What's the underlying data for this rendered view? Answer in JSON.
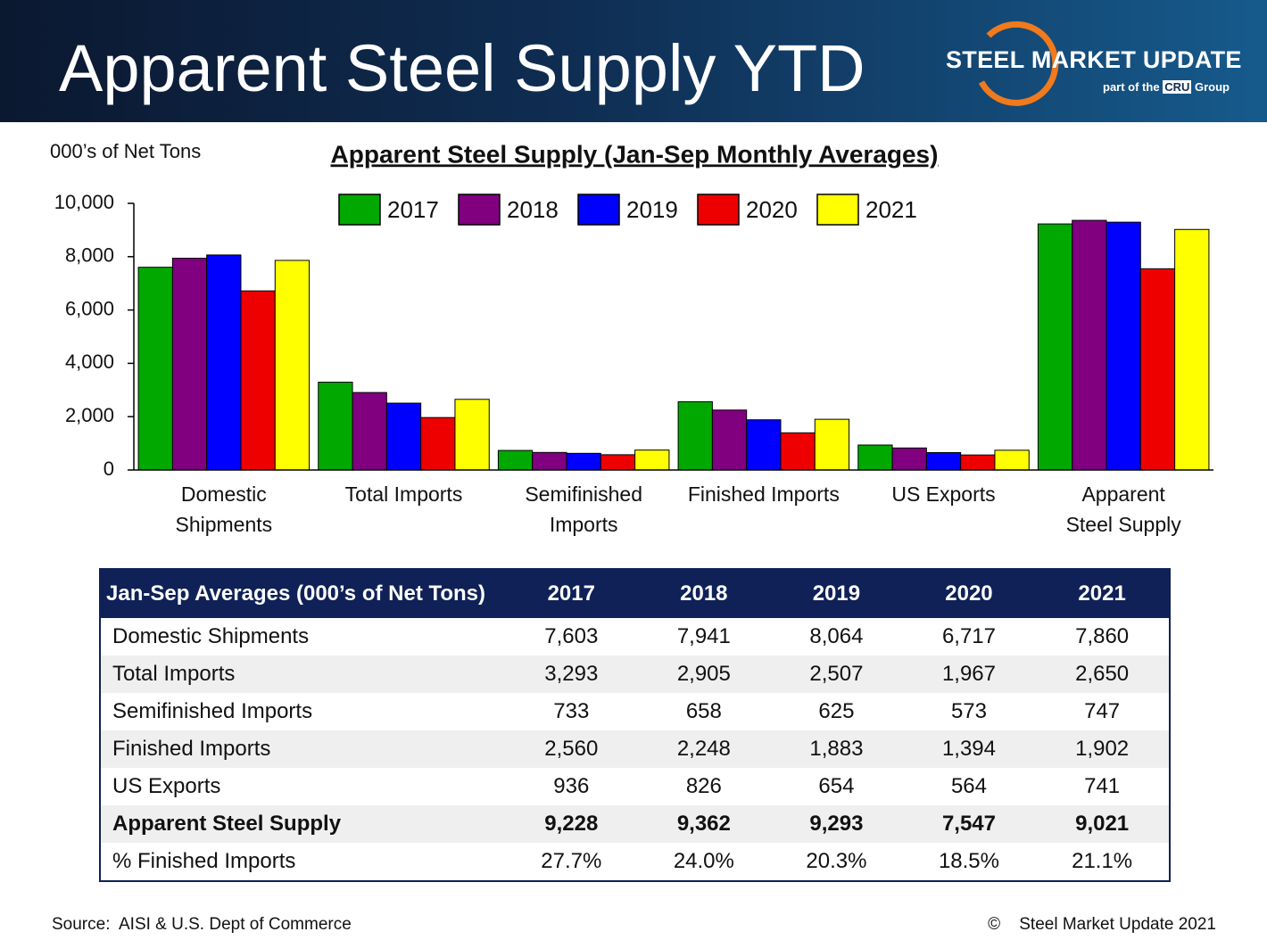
{
  "header": {
    "title": "Apparent Steel Supply YTD",
    "logo_name": "STEEL MARKET UPDATE",
    "logo_part": "part of the",
    "logo_cru": "CRU",
    "logo_group": "Group"
  },
  "chart_data": {
    "type": "bar",
    "title": "Apparent Steel Supply (Jan-Sep Monthly Averages)",
    "y_label": "000’s of Net Tons",
    "categories": [
      "Domestic\nShipments",
      "Total Imports",
      "Semifinished\nImports",
      "Finished Imports",
      "US Exports",
      "Apparent\nSteel Supply"
    ],
    "series": [
      {
        "name": "2017",
        "color": "#00a800",
        "values": [
          7603,
          3293,
          733,
          2560,
          936,
          9228
        ]
      },
      {
        "name": "2018",
        "color": "#800080",
        "values": [
          7941,
          2905,
          658,
          2248,
          826,
          9362
        ]
      },
      {
        "name": "2019",
        "color": "#0000ff",
        "values": [
          8064,
          2507,
          625,
          1883,
          654,
          9293
        ]
      },
      {
        "name": "2020",
        "color": "#ee0000",
        "values": [
          6717,
          1967,
          573,
          1394,
          564,
          7547
        ]
      },
      {
        "name": "2021",
        "color": "#ffff00",
        "values": [
          7860,
          2650,
          747,
          1902,
          741,
          9021
        ]
      }
    ],
    "ylim": [
      0,
      10000
    ],
    "yticks": [
      0,
      {
        "value": 2000,
        "label": "2,000"
      },
      {
        "value": 4000,
        "label": "4,000"
      },
      {
        "value": 6000,
        "label": "6,000"
      },
      {
        "value": 8000,
        "label": "8,000"
      },
      {
        "value": 10000,
        "label": "10,000"
      }
    ],
    "grid": false,
    "legend": "top"
  },
  "table": {
    "header": [
      "Jan-Sep Averages (000’s of Net Tons)",
      "2017",
      "2018",
      "2019",
      "2020",
      "2021"
    ],
    "rows": [
      [
        "Domestic Shipments",
        "7,603",
        "7,941",
        "8,064",
        "6,717",
        "7,860"
      ],
      [
        "Total Imports",
        "3,293",
        "2,905",
        "2,507",
        "1,967",
        "2,650"
      ],
      [
        "Semifinished Imports",
        "733",
        "658",
        "625",
        "573",
        "747"
      ],
      [
        "Finished Imports",
        "2,560",
        "2,248",
        "1,883",
        "1,394",
        "1,902"
      ],
      [
        "US Exports",
        "936",
        "826",
        "654",
        "564",
        "741"
      ],
      [
        "Apparent Steel Supply",
        "9,228",
        "9,362",
        "9,293",
        "7,547",
        "9,021"
      ],
      [
        "% Finished Imports",
        "27.7%",
        "24.0%",
        "20.3%",
        "18.5%",
        "21.1%"
      ]
    ]
  },
  "footer": {
    "source": "Source:  AISI & U.S. Dept of Commerce",
    "copyright": "©    Steel Market Update 2021"
  }
}
